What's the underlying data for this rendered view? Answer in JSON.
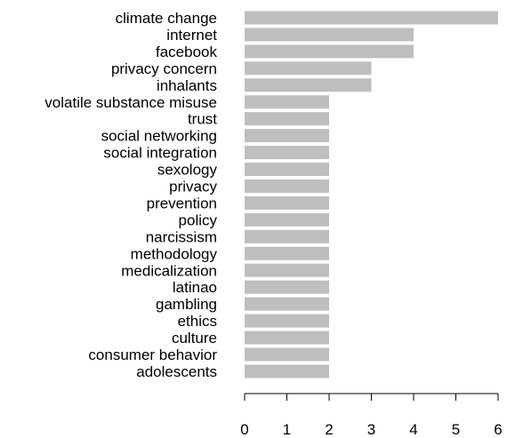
{
  "chart_data": {
    "type": "bar",
    "orientation": "horizontal",
    "title": "",
    "xlabel": "",
    "ylabel": "",
    "categories": [
      "climate change",
      "internet",
      "facebook",
      "privacy concern",
      "inhalants",
      "volatile substance misuse",
      "trust",
      "social networking",
      "social integration",
      "sexology",
      "privacy",
      "prevention",
      "policy",
      "narcissism",
      "methodology",
      "medicalization",
      "latinao",
      "gambling",
      "ethics",
      "culture",
      "consumer behavior",
      "adolescents"
    ],
    "values": [
      6,
      4,
      4,
      3,
      3,
      2,
      2,
      2,
      2,
      2,
      2,
      2,
      2,
      2,
      2,
      2,
      2,
      2,
      2,
      2,
      2,
      2
    ],
    "xlim": [
      0,
      6
    ],
    "xticks": [
      "0",
      "1",
      "2",
      "3",
      "4",
      "5",
      "6"
    ],
    "bar_color": "#bebebe",
    "grid": false,
    "legend": "none"
  }
}
